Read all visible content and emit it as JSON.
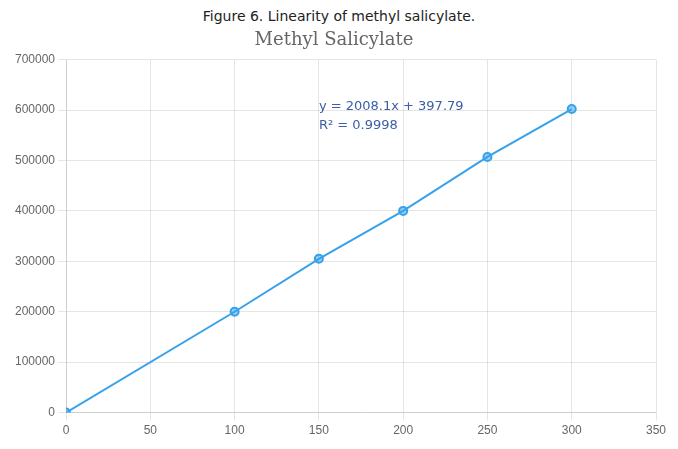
{
  "chart_data": {
    "type": "line",
    "caption": "Figure 6. Linearity of methyl salicylate.",
    "title": "Methyl Salicylate",
    "x": [
      0,
      100,
      150,
      200,
      250,
      300
    ],
    "values": [
      0,
      200000,
      305000,
      400000,
      507000,
      602000
    ],
    "marker": "circle",
    "xlim": [
      0,
      350
    ],
    "ylim": [
      0,
      700000
    ],
    "xticks": [
      0,
      50,
      100,
      150,
      200,
      250,
      300,
      350
    ],
    "yticks": [
      0,
      100000,
      200000,
      300000,
      400000,
      500000,
      600000,
      700000
    ],
    "grid": true,
    "annotations": [
      {
        "text": "y = 2008.1x + 397.79\nR² = 0.9998",
        "x": 150,
        "y": 620000
      }
    ]
  }
}
